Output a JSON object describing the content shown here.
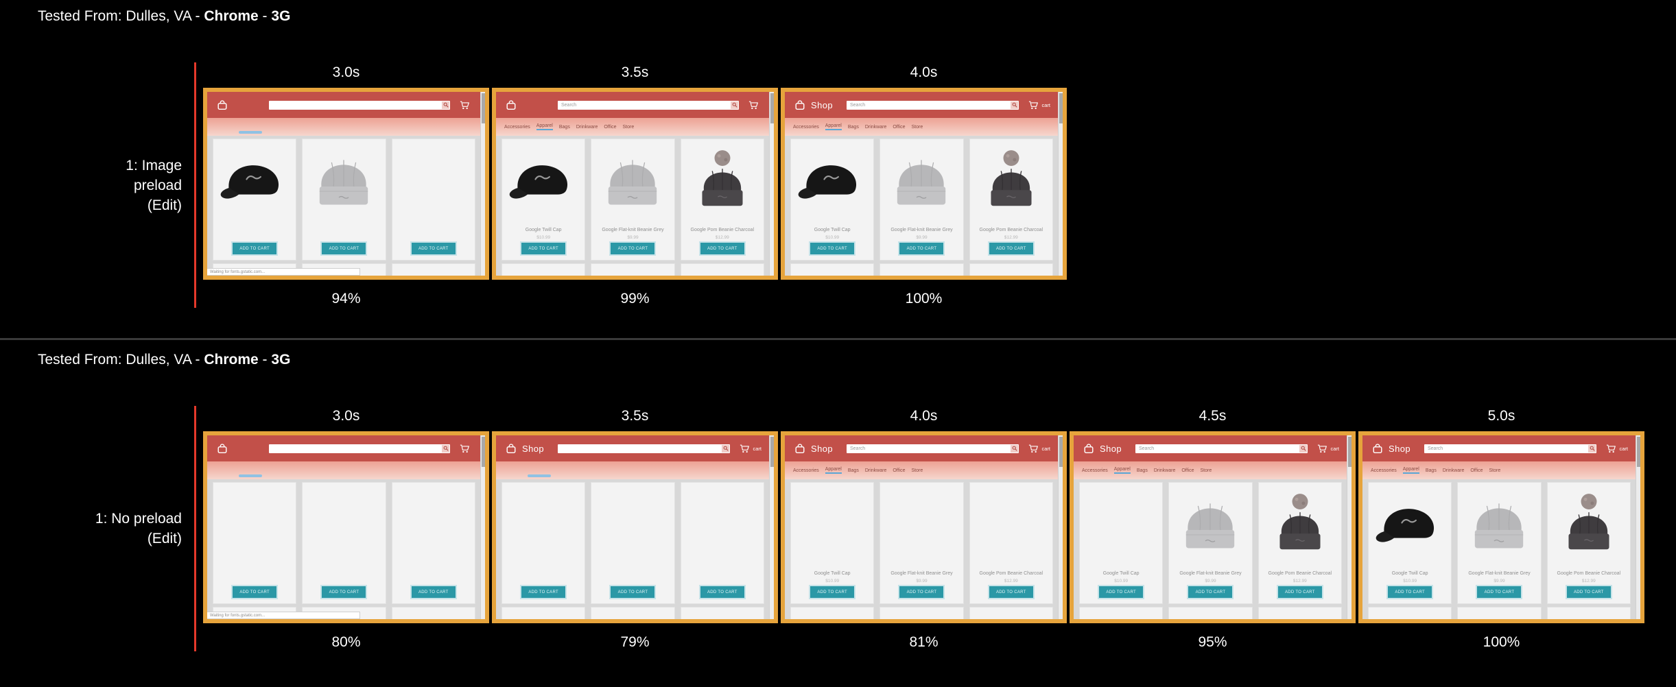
{
  "colors": {
    "background": "#000000",
    "frame_border_orange": "#E6A43C",
    "timeline_red": "#E5392B",
    "shop_header_red": "#C25049",
    "shop_banner_pink": "#EDA294",
    "add_to_cart_teal": "#2B98A6",
    "nav_underline_blue": "#5AA7D6",
    "divider_gray": "#3A3A3A"
  },
  "shop": {
    "logo": "Shop",
    "search_placeholder": "Search",
    "cart_label": "cart",
    "nav_items": [
      "Accessories",
      "Apparel",
      "Bags",
      "Drinkware",
      "Office",
      "Store"
    ],
    "active_nav_index": 1,
    "add_to_cart": "ADD TO CART",
    "status_text": "Waiting for fonts.gstatic.com...",
    "products": [
      {
        "name": "Google Twill Cap",
        "price": "$10.99",
        "image": "cap"
      },
      {
        "name": "Google Flat-knit Beanie Grey",
        "price": "$9.99",
        "image": "beanie-gray"
      },
      {
        "name": "Google Pom Beanie Charcoal",
        "price": "$12.99",
        "image": "beanie-charcoal"
      }
    ]
  },
  "sections": [
    {
      "tested_from": {
        "prefix": "Tested From: Dulles, VA - ",
        "browser": "Chrome",
        "separator": " - ",
        "network": "3G"
      },
      "run_label": "1: Image preload",
      "edit_label": "(Edit)",
      "frames": [
        {
          "time": "3.0s",
          "progress": "94%",
          "logo": false,
          "search_text": false,
          "cart_label": false,
          "nav": false,
          "names": false,
          "status_bar": true,
          "images": [
            "cap",
            "beanie-gray",
            null
          ]
        },
        {
          "time": "3.5s",
          "progress": "99%",
          "logo": false,
          "search_text": true,
          "cart_label": false,
          "nav": true,
          "names": true,
          "status_bar": false,
          "images": [
            "cap",
            "beanie-gray",
            "beanie-charcoal"
          ]
        },
        {
          "time": "4.0s",
          "progress": "100%",
          "logo": true,
          "search_text": true,
          "cart_label": true,
          "nav": true,
          "names": true,
          "status_bar": false,
          "images": [
            "cap",
            "beanie-gray",
            "beanie-charcoal"
          ]
        }
      ]
    },
    {
      "tested_from": {
        "prefix": "Tested From: Dulles, VA - ",
        "browser": "Chrome",
        "separator": " - ",
        "network": "3G"
      },
      "run_label": "1: No preload",
      "edit_label": "(Edit)",
      "frames": [
        {
          "time": "3.0s",
          "progress": "80%",
          "logo": false,
          "search_text": false,
          "cart_label": false,
          "nav": false,
          "names": false,
          "status_bar": true,
          "images": [
            null,
            null,
            null
          ]
        },
        {
          "time": "3.5s",
          "progress": "79%",
          "logo": true,
          "search_text": false,
          "cart_label": true,
          "nav": false,
          "names": false,
          "status_bar": false,
          "images": [
            null,
            null,
            null
          ]
        },
        {
          "time": "4.0s",
          "progress": "81%",
          "logo": true,
          "search_text": true,
          "cart_label": true,
          "nav": true,
          "names": true,
          "status_bar": false,
          "images": [
            null,
            null,
            null
          ]
        },
        {
          "time": "4.5s",
          "progress": "95%",
          "logo": true,
          "search_text": true,
          "cart_label": true,
          "nav": true,
          "names": true,
          "status_bar": false,
          "images": [
            null,
            "beanie-gray",
            "beanie-charcoal"
          ]
        },
        {
          "time": "5.0s",
          "progress": "100%",
          "logo": true,
          "search_text": true,
          "cart_label": true,
          "nav": true,
          "names": true,
          "status_bar": false,
          "images": [
            "cap",
            "beanie-gray",
            "beanie-charcoal"
          ]
        }
      ]
    }
  ]
}
